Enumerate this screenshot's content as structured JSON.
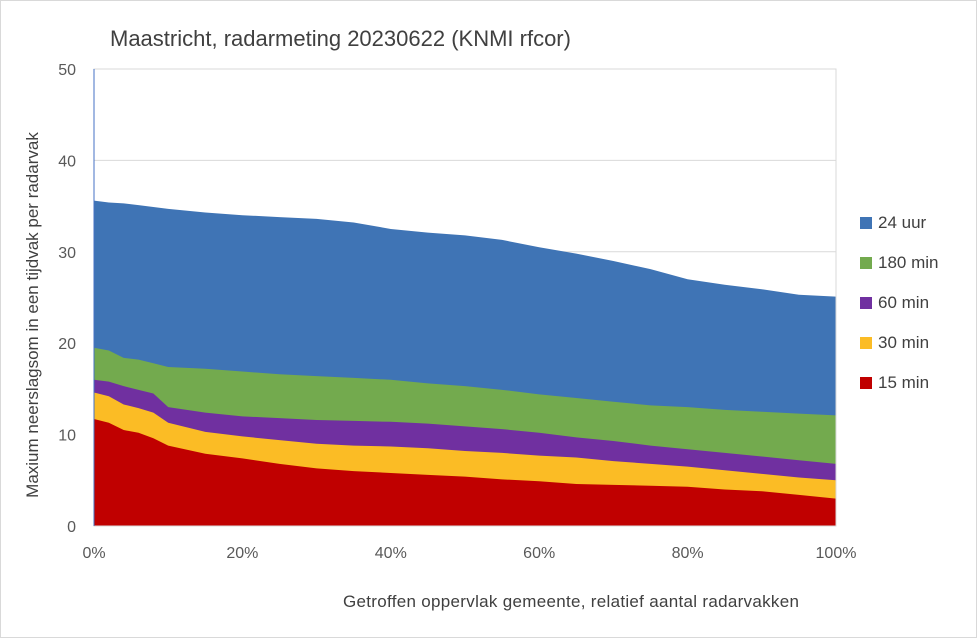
{
  "chart_data": {
    "type": "area",
    "title": "Maastricht, radarmeting 20230622 (KNMI rfcor)",
    "xlabel": "Getroffen oppervlak gemeente, relatief aantal radarvakken",
    "ylabel": "Maxium neerslagsom in een tijdvak per radarvak",
    "xlim": [
      0,
      100
    ],
    "ylim": [
      0,
      50
    ],
    "x_ticks": [
      "0%",
      "20%",
      "40%",
      "60%",
      "80%",
      "100%"
    ],
    "y_ticks": [
      "0",
      "10",
      "20",
      "30",
      "40",
      "50"
    ],
    "x": [
      0,
      2,
      4,
      6,
      8,
      10,
      15,
      20,
      25,
      30,
      35,
      40,
      45,
      50,
      55,
      60,
      65,
      70,
      75,
      80,
      85,
      90,
      95,
      100
    ],
    "series": [
      {
        "name": "24 uur",
        "color": "#3f74b5",
        "values": [
          35.6,
          35.4,
          35.3,
          35.1,
          34.9,
          34.7,
          34.3,
          34.0,
          33.8,
          33.6,
          33.2,
          32.5,
          32.1,
          31.8,
          31.3,
          30.5,
          29.8,
          29.0,
          28.1,
          27.0,
          26.4,
          25.9,
          25.3,
          25.1
        ]
      },
      {
        "name": "180 min",
        "color": "#73aa4e",
        "values": [
          19.5,
          19.2,
          18.4,
          18.2,
          17.8,
          17.4,
          17.2,
          16.9,
          16.6,
          16.4,
          16.2,
          16.0,
          15.6,
          15.3,
          14.9,
          14.4,
          14.0,
          13.6,
          13.2,
          13.0,
          12.7,
          12.5,
          12.3,
          12.1
        ]
      },
      {
        "name": "60 min",
        "color": "#7030a0",
        "values": [
          16.0,
          15.8,
          15.3,
          14.9,
          14.5,
          13.0,
          12.4,
          12.0,
          11.8,
          11.6,
          11.5,
          11.4,
          11.2,
          10.9,
          10.6,
          10.2,
          9.7,
          9.3,
          8.8,
          8.4,
          8.0,
          7.6,
          7.2,
          6.8
        ]
      },
      {
        "name": "30 min",
        "color": "#fbbc25",
        "values": [
          14.6,
          14.2,
          13.3,
          12.9,
          12.4,
          11.3,
          10.3,
          9.8,
          9.4,
          9.0,
          8.8,
          8.7,
          8.5,
          8.2,
          8.0,
          7.7,
          7.5,
          7.1,
          6.8,
          6.5,
          6.1,
          5.7,
          5.3,
          5.0
        ]
      },
      {
        "name": "15 min",
        "color": "#c00000",
        "values": [
          11.7,
          11.3,
          10.5,
          10.2,
          9.6,
          8.8,
          7.9,
          7.4,
          6.8,
          6.3,
          6.0,
          5.8,
          5.6,
          5.4,
          5.1,
          4.9,
          4.6,
          4.5,
          4.4,
          4.3,
          4.0,
          3.8,
          3.4,
          3.0
        ]
      }
    ],
    "grid": {
      "y_major": true,
      "x_major": false
    },
    "legend_position": "right"
  }
}
